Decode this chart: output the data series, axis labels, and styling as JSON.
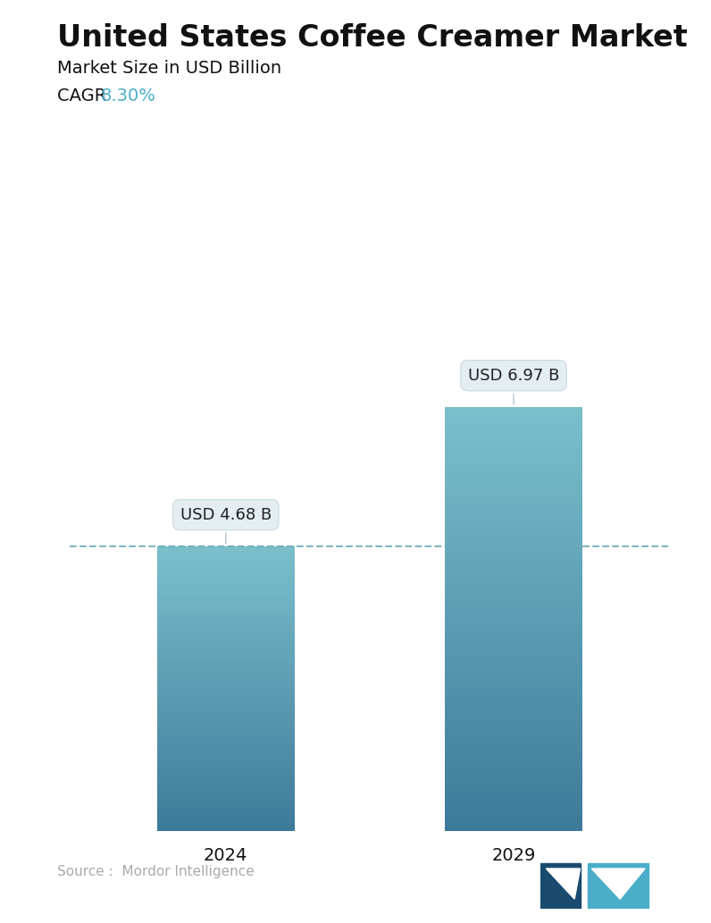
{
  "title": "United States Coffee Creamer Market",
  "subtitle": "Market Size in USD Billion",
  "cagr_label": "CAGR ",
  "cagr_value": "8.30%",
  "cagr_color": "#4aaec9",
  "categories": [
    "2024",
    "2029"
  ],
  "values": [
    4.68,
    6.97
  ],
  "bar_labels": [
    "USD 4.68 B",
    "USD 6.97 B"
  ],
  "bar_top_color": "#7bbfcb",
  "bar_bottom_color": "#3d7a9a",
  "dashed_line_color": "#6aaabb",
  "dashed_line_y": 4.68,
  "source_text": "Source :  Mordor Intelligence",
  "source_color": "#aaaaaa",
  "background_color": "#ffffff",
  "title_fontsize": 24,
  "subtitle_fontsize": 14,
  "cagr_fontsize": 14,
  "xlabel_fontsize": 14,
  "bar_label_fontsize": 13,
  "ylim": [
    0,
    8.8
  ],
  "bar_width": 0.22,
  "x_positions": [
    0.27,
    0.73
  ]
}
